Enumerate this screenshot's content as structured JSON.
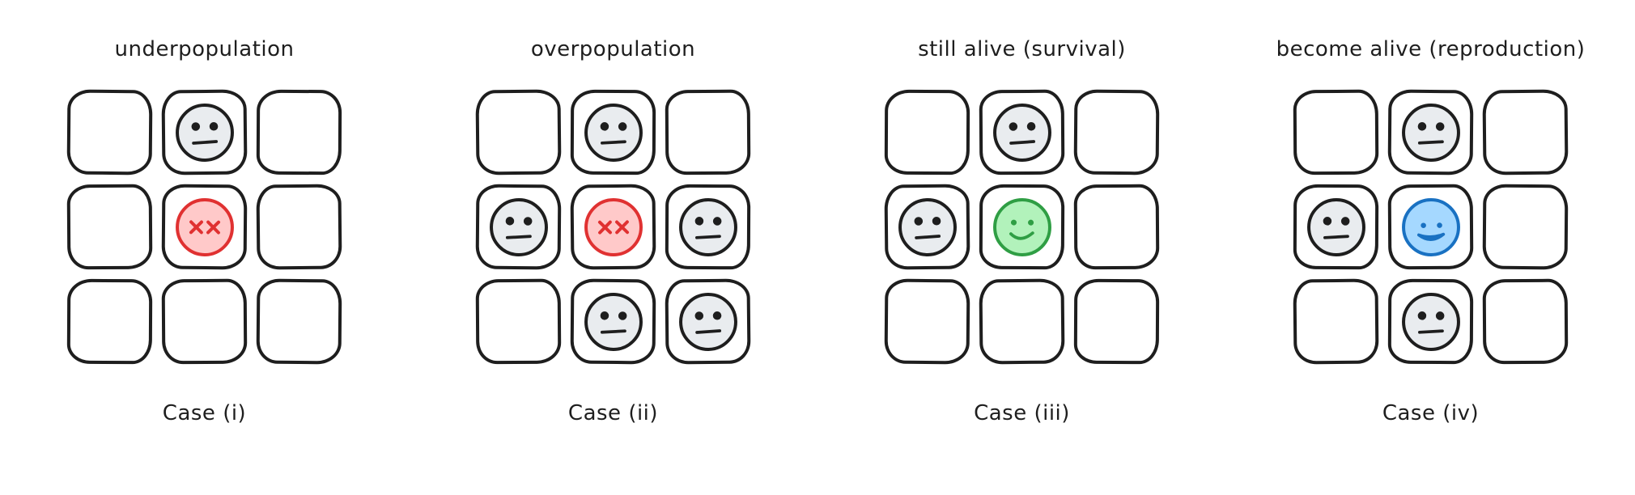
{
  "figure": {
    "type": "diagram",
    "subject": "game-of-life-rules",
    "theme": {
      "background": "#ffffff",
      "ink": "#1e1e1e"
    },
    "panels": [
      {
        "id": "underpopulation",
        "title": "underpopulation",
        "caption": "Case (i)",
        "grid": [
          [
            "empty",
            "alive",
            "empty"
          ],
          [
            "empty",
            "dead",
            "empty"
          ],
          [
            "empty",
            "empty",
            "empty"
          ]
        ]
      },
      {
        "id": "overpopulation",
        "title": "overpopulation",
        "caption": "Case (ii)",
        "grid": [
          [
            "empty",
            "alive",
            "empty"
          ],
          [
            "alive",
            "dead",
            "alive"
          ],
          [
            "empty",
            "alive",
            "alive"
          ]
        ]
      },
      {
        "id": "survival",
        "title": "still alive (survival)",
        "caption": "Case (iii)",
        "grid": [
          [
            "empty",
            "alive",
            "empty"
          ],
          [
            "alive",
            "survivor",
            "empty"
          ],
          [
            "empty",
            "empty",
            "empty"
          ]
        ]
      },
      {
        "id": "reproduction",
        "title": "become alive (reproduction)",
        "caption": "Case (iv)",
        "grid": [
          [
            "empty",
            "alive",
            "empty"
          ],
          [
            "alive",
            "born",
            "empty"
          ],
          [
            "empty",
            "alive",
            "empty"
          ]
        ]
      }
    ],
    "face_styles": {
      "alive": {
        "icon": "neutral-face-icon",
        "kind": "neutral",
        "fill": "#e9ecef",
        "stroke": "#1e1e1e",
        "features": "#1e1e1e"
      },
      "dead": {
        "icon": "dead-face-icon",
        "kind": "dead",
        "fill": "#ffc9c9",
        "stroke": "#e03131",
        "features": "#e03131"
      },
      "survivor": {
        "icon": "smiling-face-icon",
        "kind": "smile",
        "fill": "#b2f2bb",
        "stroke": "#2f9e44",
        "features": "#2f9e44"
      },
      "born": {
        "icon": "open-smile-face-icon",
        "kind": "open_smile",
        "fill": "#a5d8ff",
        "stroke": "#1971c2",
        "features": "#1971c2"
      }
    }
  }
}
